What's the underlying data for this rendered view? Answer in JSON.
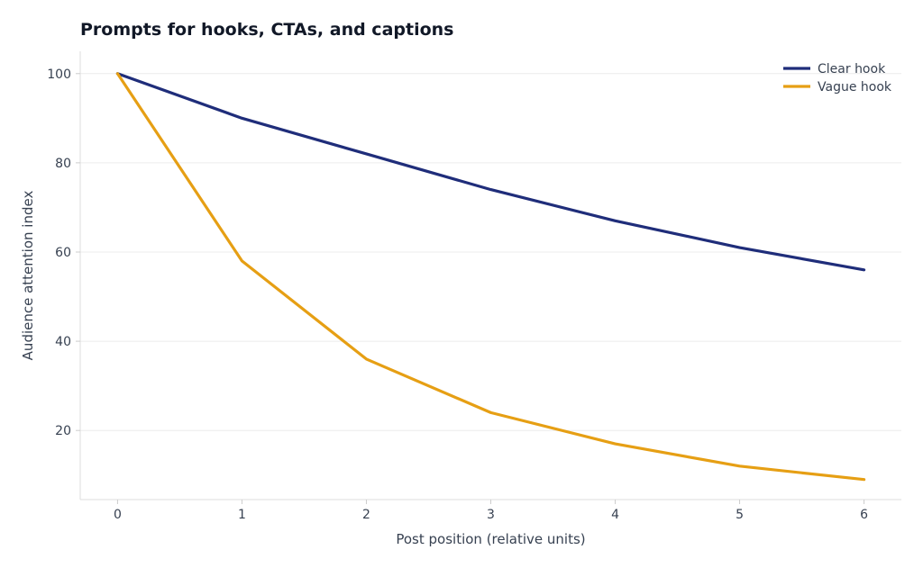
{
  "chart_data": {
    "type": "line",
    "title": "Prompts for hooks, CTAs, and captions",
    "xlabel": "Post position (relative units)",
    "ylabel": "Audience attention index",
    "x": [
      0,
      1,
      2,
      3,
      4,
      5,
      6
    ],
    "x_ticks": [
      0,
      1,
      2,
      3,
      4,
      5,
      6
    ],
    "y_ticks": [
      20,
      40,
      60,
      80,
      100
    ],
    "xlim": [
      -0.3,
      6.3
    ],
    "ylim": [
      4.5,
      105
    ],
    "grid": "horizontal",
    "legend_position": "top-right",
    "series": [
      {
        "name": "Clear hook",
        "color": "#1f2d7a",
        "values": [
          100,
          90,
          82,
          74,
          67,
          61,
          56
        ]
      },
      {
        "name": "Vague hook",
        "color": "#e69f14",
        "values": [
          100,
          58,
          36,
          24,
          17,
          12,
          9
        ]
      }
    ]
  }
}
